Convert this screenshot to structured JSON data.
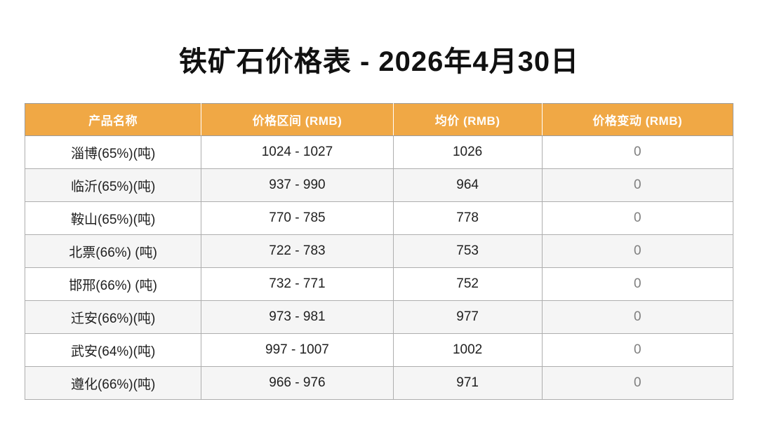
{
  "page_title": "铁矿石价格表 - 2026年4月30日",
  "colors": {
    "header_bg": "#F0A845",
    "header_text": "#FFFFFF",
    "row_alt_bg": "#F5F5F5",
    "border": "#AEAEAE",
    "body_text": "#212121",
    "change_text": "#7F7F7F",
    "page_bg": "#FFFFFF"
  },
  "chart_data": {
    "type": "table",
    "title": "铁矿石价格表 - 2026年4月30日",
    "columns": [
      "产品名称",
      "价格区间 (RMB)",
      "均价 (RMB)",
      "价格变动 (RMB)"
    ],
    "rows": [
      {
        "product": "淄博(65%)(吨)",
        "price_range": "1024 - 1027",
        "avg_price": "1026",
        "price_change": "0"
      },
      {
        "product": "临沂(65%)(吨)",
        "price_range": "937 - 990",
        "avg_price": "964",
        "price_change": "0"
      },
      {
        "product": "鞍山(65%)(吨)",
        "price_range": "770 - 785",
        "avg_price": "778",
        "price_change": "0"
      },
      {
        "product": "北票(66%) (吨)",
        "price_range": "722 - 783",
        "avg_price": "753",
        "price_change": "0"
      },
      {
        "product": "邯邢(66%) (吨)",
        "price_range": "732 - 771",
        "avg_price": "752",
        "price_change": "0"
      },
      {
        "product": "迁安(66%)(吨)",
        "price_range": "973 - 981",
        "avg_price": "977",
        "price_change": "0"
      },
      {
        "product": "武安(64%)(吨)",
        "price_range": "997 - 1007",
        "avg_price": "1002",
        "price_change": "0"
      },
      {
        "product": "遵化(66%)(吨)",
        "price_range": "966 - 976",
        "avg_price": "971",
        "price_change": "0"
      }
    ]
  }
}
